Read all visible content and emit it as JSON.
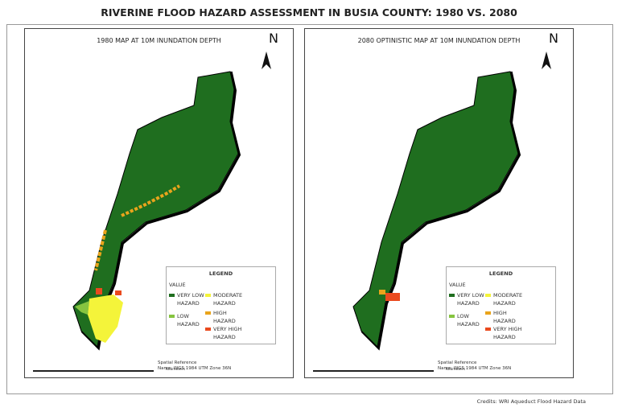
{
  "title": "RIVERINE FLOOD HAZARD ASSESSMENT IN BUSIA COUNTY: 1980 VS. 2080",
  "panels": [
    {
      "title": "1980 MAP AT 10M INUNDATION DEPTH",
      "north": "N",
      "scale_unit": "Kilometers",
      "spatial_reference": {
        "heading": "Spatial Reference",
        "name": "Name: WGS 1984 UTM Zone 36N"
      }
    },
    {
      "title": "2080 OPTINISTIC MAP AT 10M INUNDATION DEPTH",
      "north": "N",
      "scale_unit": "Kilometers",
      "spatial_reference": {
        "heading": "Spatial Reference",
        "name": "Name: WGS 1984 UTM Zone 36N"
      }
    }
  ],
  "legend": {
    "title": "LEGEND",
    "value_label": "VALUE",
    "items": [
      {
        "label": "VERY LOW HAZARD",
        "color": "#1f6e1f"
      },
      {
        "label": "LOW HAZARD",
        "color": "#86c440"
      },
      {
        "label": "MODERATE HAZARD",
        "color": "#f4f43a"
      },
      {
        "label": "HIGH HAZARD",
        "color": "#e9a41c"
      },
      {
        "label": "VERY HIGH HAZARD",
        "color": "#ea4a1e"
      }
    ]
  },
  "credits": "Credits: WRI Aqueduct Flood Hazard Data"
}
